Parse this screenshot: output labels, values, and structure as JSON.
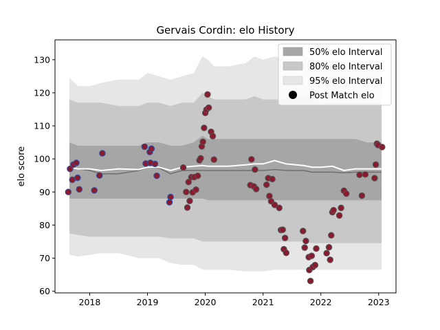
{
  "chart_data": {
    "type": "scatter",
    "title": "Gervais Cordin: elo History",
    "xlabel": "",
    "ylabel": "elo score",
    "xlim": [
      2017.4,
      2023.3
    ],
    "ylim": [
      59.5,
      136
    ],
    "xticks": [
      2018,
      2019,
      2020,
      2021,
      2022,
      2023
    ],
    "xtick_labels": [
      "2018",
      "2019",
      "2020",
      "2021",
      "2022",
      "2023"
    ],
    "yticks": [
      60,
      70,
      80,
      90,
      100,
      110,
      120,
      130
    ],
    "ytick_labels": [
      "60",
      "70",
      "80",
      "90",
      "100",
      "110",
      "120",
      "130"
    ],
    "grid": false,
    "legend_position": "top-right",
    "legend": [
      "50% elo Interval",
      "80% elo Interval",
      "95% elo Interval",
      "Post Match elo"
    ],
    "colors": {
      "band50": "#a6a6a6",
      "band80": "#c8c8c8",
      "band95": "#e6e6e6",
      "mean_line": "#ffffff",
      "median_line": "#6e6e6e",
      "point_fill": "#8a1a2e",
      "point_edge_early": "#2e4fa0",
      "point_edge_late": "#555555"
    },
    "bands": {
      "x": [
        2017.65,
        2017.8,
        2018.0,
        2018.2,
        2018.5,
        2018.85,
        2019.0,
        2019.2,
        2019.4,
        2019.6,
        2019.8,
        2019.95,
        2020.05,
        2020.15,
        2020.4,
        2020.7,
        2020.85,
        2021.0,
        2021.2,
        2021.4,
        2021.7,
        2021.85,
        2022.0,
        2022.2,
        2022.4,
        2022.6,
        2022.8,
        2023.05
      ],
      "p95_upper": [
        124.5,
        122,
        122,
        123,
        124,
        124,
        126,
        125,
        124,
        125,
        126,
        131,
        130,
        128,
        128,
        129,
        131,
        130,
        131,
        130,
        131,
        131,
        129,
        128,
        127,
        127,
        127,
        127
      ],
      "p80_upper": [
        118,
        117,
        117,
        117,
        116,
        116,
        117,
        117,
        116,
        117,
        117,
        120,
        119,
        118,
        118,
        118,
        119,
        118,
        118,
        118,
        119,
        118,
        117,
        117,
        117,
        117,
        117,
        117
      ],
      "p50_upper": [
        105,
        104,
        104,
        104,
        104,
        104,
        105,
        105,
        104,
        104,
        105,
        107,
        106,
        106,
        106,
        106,
        106,
        106,
        106,
        106,
        106,
        106,
        106,
        106,
        106,
        106,
        105,
        105
      ],
      "p50_lower": [
        88,
        88,
        88,
        88,
        88,
        88,
        88,
        88,
        88,
        88,
        88,
        88,
        87.5,
        87.5,
        87.5,
        87.5,
        87.5,
        87.5,
        87.5,
        87.5,
        87.5,
        87.5,
        87.5,
        87.5,
        87.5,
        87.5,
        87.5,
        87.5
      ],
      "p80_lower": [
        77.5,
        77,
        76.5,
        76.5,
        76.5,
        76.5,
        76.5,
        76.5,
        76,
        76,
        76,
        75,
        75,
        75,
        75,
        75,
        75,
        75,
        75,
        75,
        75,
        74.5,
        74.5,
        74.5,
        74.5,
        74.5,
        74.5,
        74.5
      ],
      "p95_lower": [
        71,
        70.5,
        71,
        71.5,
        71.5,
        70,
        70,
        70,
        68.5,
        68,
        68,
        66.5,
        66.5,
        66.5,
        66.5,
        66,
        66,
        66,
        66.5,
        66.5,
        66.5,
        66.5,
        66.5,
        66.5,
        66.5,
        66.5,
        66.5,
        66.5
      ],
      "mean": [
        97.5,
        97,
        97,
        96.5,
        97,
        96.8,
        97.5,
        97.5,
        96.5,
        97.5,
        97.8,
        98,
        97.8,
        97.8,
        97.8,
        98.2,
        98.5,
        98.5,
        99.5,
        98.5,
        98,
        97.5,
        97.5,
        97.8,
        96.5,
        97,
        97,
        97
      ],
      "median": [
        97.5,
        97,
        96.5,
        95.5,
        95.5,
        96.5,
        97.5,
        97.3,
        95.5,
        96.5,
        96.5,
        96.5,
        96.5,
        96.5,
        96.5,
        96.5,
        96.5,
        96.5,
        96.8,
        96.5,
        96.5,
        96,
        96,
        96,
        95.8,
        96,
        96,
        96
      ]
    },
    "series": [
      {
        "name": "Post Match elo",
        "points": [
          [
            2017.63,
            90
          ],
          [
            2017.66,
            97
          ],
          [
            2017.7,
            93.7
          ],
          [
            2017.72,
            98.3
          ],
          [
            2017.77,
            98.8
          ],
          [
            2017.79,
            94.3
          ],
          [
            2017.82,
            90.8
          ],
          [
            2018.08,
            90.5
          ],
          [
            2018.17,
            95
          ],
          [
            2018.22,
            101.7
          ],
          [
            2018.95,
            103.7
          ],
          [
            2018.97,
            98.6
          ],
          [
            2019.04,
            102.1
          ],
          [
            2019.05,
            98.8
          ],
          [
            2019.07,
            103.1
          ],
          [
            2019.13,
            98.5
          ],
          [
            2019.16,
            94.9
          ],
          [
            2019.38,
            86.9
          ],
          [
            2019.4,
            88.5
          ],
          [
            2019.62,
            97.4
          ],
          [
            2019.67,
            90
          ],
          [
            2019.69,
            85.3
          ],
          [
            2019.71,
            93
          ],
          [
            2019.73,
            87.3
          ],
          [
            2019.76,
            94.5
          ],
          [
            2019.78,
            89.9
          ],
          [
            2019.81,
            94.5
          ],
          [
            2019.84,
            90.7
          ],
          [
            2019.87,
            94.9
          ],
          [
            2019.9,
            99.6
          ],
          [
            2019.92,
            100.2
          ],
          [
            2019.94,
            103.8
          ],
          [
            2019.96,
            105.2
          ],
          [
            2019.98,
            109.4
          ],
          [
            2020.0,
            113.9
          ],
          [
            2020.02,
            114.9
          ],
          [
            2020.04,
            119.5
          ],
          [
            2020.06,
            115.5
          ],
          [
            2020.1,
            108.2
          ],
          [
            2020.13,
            106.9
          ],
          [
            2020.15,
            99.8
          ],
          [
            2020.78,
            92.1
          ],
          [
            2020.8,
            99.9
          ],
          [
            2020.84,
            91.7
          ],
          [
            2020.86,
            96.8
          ],
          [
            2020.88,
            90.9
          ],
          [
            2021.06,
            92.2
          ],
          [
            2021.09,
            94.2
          ],
          [
            2021.11,
            88.8
          ],
          [
            2021.14,
            87.2
          ],
          [
            2021.16,
            93.9
          ],
          [
            2021.2,
            86.1
          ],
          [
            2021.28,
            85.2
          ],
          [
            2021.31,
            78.5
          ],
          [
            2021.34,
            78.6
          ],
          [
            2021.36,
            72.7
          ],
          [
            2021.38,
            76.1
          ],
          [
            2021.4,
            71.6
          ],
          [
            2021.69,
            78.2
          ],
          [
            2021.72,
            73.2
          ],
          [
            2021.74,
            75.2
          ],
          [
            2021.79,
            70.3
          ],
          [
            2021.8,
            66.4
          ],
          [
            2021.82,
            63.1
          ],
          [
            2021.84,
            70.7
          ],
          [
            2021.86,
            67.3
          ],
          [
            2021.9,
            67.9
          ],
          [
            2021.92,
            72.9
          ],
          [
            2022.1,
            71.5
          ],
          [
            2022.14,
            73.3
          ],
          [
            2022.16,
            69.5
          ],
          [
            2022.18,
            76.9
          ],
          [
            2022.2,
            83.9
          ],
          [
            2022.22,
            84.5
          ],
          [
            2022.32,
            82.9
          ],
          [
            2022.35,
            85.2
          ],
          [
            2022.4,
            90.4
          ],
          [
            2022.44,
            89.5
          ],
          [
            2022.67,
            95.2
          ],
          [
            2022.71,
            88.9
          ],
          [
            2022.77,
            95.3
          ],
          [
            2022.93,
            94.2
          ],
          [
            2022.95,
            98.3
          ],
          [
            2022.97,
            104.6
          ],
          [
            2022.99,
            104.2
          ],
          [
            2023.06,
            103.6
          ]
        ]
      }
    ]
  }
}
